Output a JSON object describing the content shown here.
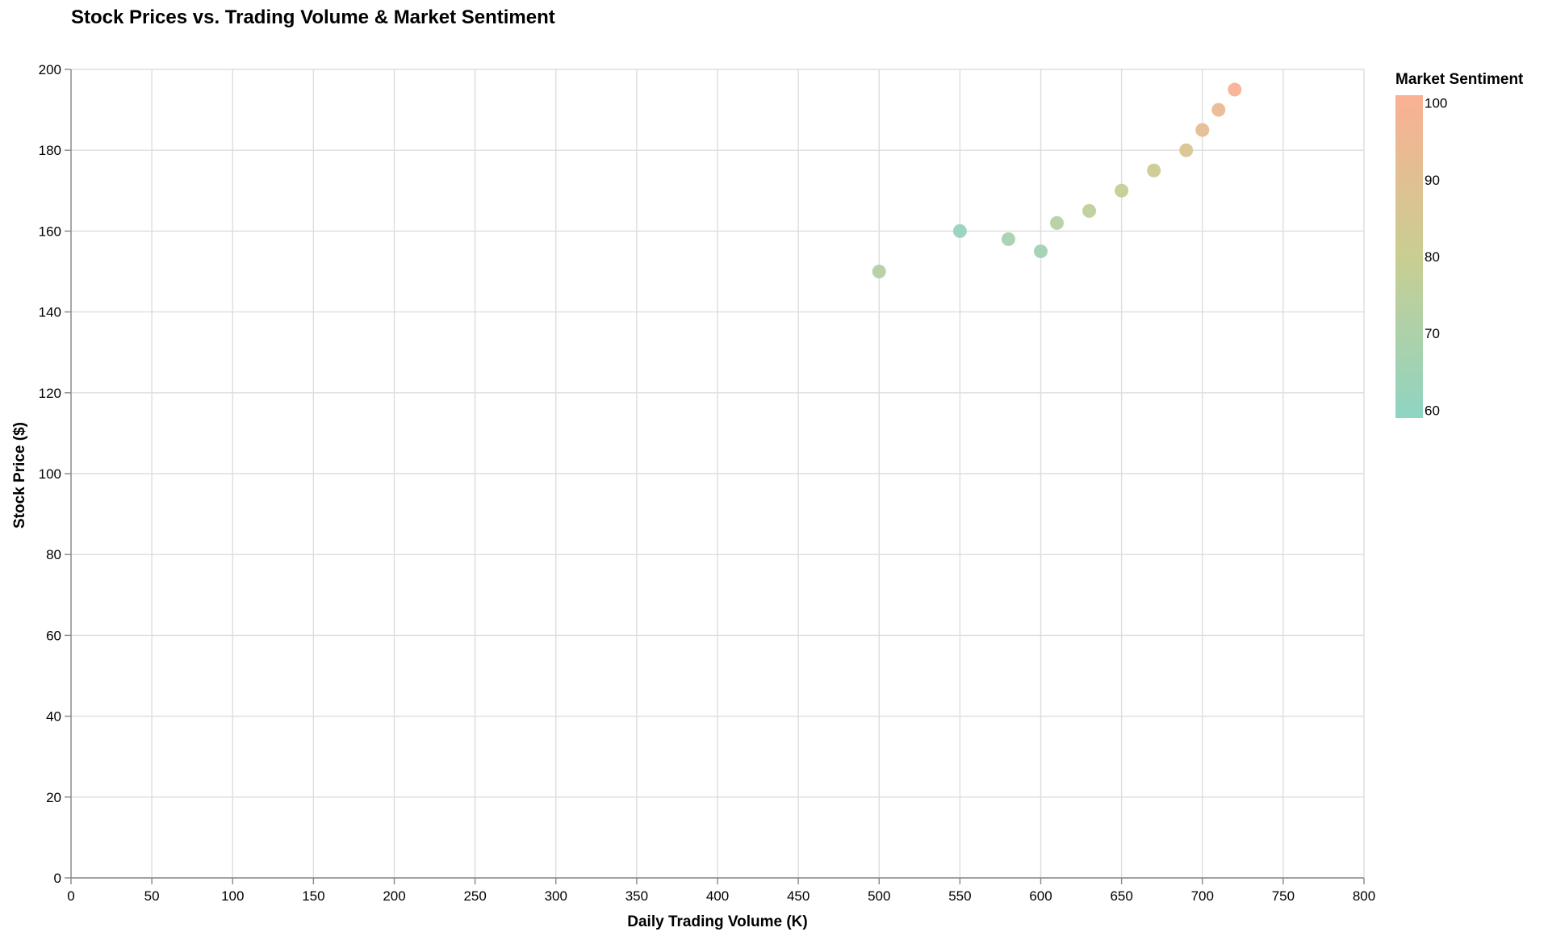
{
  "chart_data": {
    "type": "scatter",
    "title": "Stock Prices vs. Trading Volume & Market Sentiment",
    "xlabel": "Daily Trading Volume (K)",
    "ylabel": "Stock Price ($)",
    "xlim": [
      0,
      800
    ],
    "ylim": [
      0,
      200
    ],
    "xticks": [
      0,
      50,
      100,
      150,
      200,
      250,
      300,
      350,
      400,
      450,
      500,
      550,
      600,
      650,
      700,
      750,
      800
    ],
    "yticks": [
      0,
      20,
      40,
      60,
      80,
      100,
      120,
      140,
      160,
      180,
      200
    ],
    "grid": true,
    "legend": {
      "title": "Market Sentiment",
      "placement": "right",
      "type": "gradient",
      "domain": [
        59,
        101
      ],
      "ticks": [
        60,
        70,
        80,
        90,
        100
      ],
      "color_low": "#8fd4c3",
      "color_mid": "#c9ce91",
      "color_high": "#fbb094"
    },
    "points": [
      {
        "x": 500,
        "y": 150,
        "sentiment": 72
      },
      {
        "x": 550,
        "y": 160,
        "sentiment": 62
      },
      {
        "x": 580,
        "y": 158,
        "sentiment": 68
      },
      {
        "x": 600,
        "y": 155,
        "sentiment": 66
      },
      {
        "x": 610,
        "y": 162,
        "sentiment": 73
      },
      {
        "x": 630,
        "y": 165,
        "sentiment": 76
      },
      {
        "x": 650,
        "y": 170,
        "sentiment": 79
      },
      {
        "x": 670,
        "y": 175,
        "sentiment": 82
      },
      {
        "x": 690,
        "y": 180,
        "sentiment": 87
      },
      {
        "x": 700,
        "y": 185,
        "sentiment": 92
      },
      {
        "x": 710,
        "y": 190,
        "sentiment": 94
      },
      {
        "x": 720,
        "y": 195,
        "sentiment": 100
      }
    ]
  }
}
